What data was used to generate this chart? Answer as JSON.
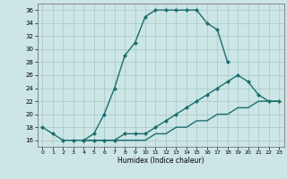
{
  "xlabel": "Humidex (Indice chaleur)",
  "bg_color": "#cce5e5",
  "grid_color": "#aacccc",
  "line_color": "#1a6e6e",
  "xlim": [
    -0.5,
    23.5
  ],
  "ylim": [
    15.0,
    37.0
  ],
  "yticks": [
    16,
    18,
    20,
    22,
    24,
    26,
    28,
    30,
    32,
    34,
    36
  ],
  "xticks": [
    0,
    1,
    2,
    3,
    4,
    5,
    6,
    7,
    8,
    9,
    10,
    11,
    12,
    13,
    14,
    15,
    16,
    17,
    18,
    19,
    20,
    21,
    22,
    23
  ],
  "line1_x": [
    0,
    1,
    2,
    3,
    4,
    5,
    6,
    7,
    8,
    9,
    10,
    11,
    12,
    13,
    14,
    15,
    16,
    17,
    18
  ],
  "line1_y": [
    18,
    17,
    16,
    16,
    16,
    17,
    20,
    24,
    29,
    31,
    35,
    36,
    36,
    36,
    36,
    36,
    34,
    33,
    28
  ],
  "line2_x": [
    4,
    5,
    6,
    7,
    8,
    9,
    10,
    11,
    12,
    13,
    14,
    15,
    16,
    17,
    18,
    19,
    20,
    21,
    22,
    23
  ],
  "line2_y": [
    16,
    16,
    16,
    16,
    17,
    17,
    17,
    18,
    19,
    20,
    21,
    22,
    23,
    24,
    25,
    26,
    25,
    23,
    22,
    22
  ],
  "line3_x": [
    4,
    5,
    6,
    7,
    8,
    9,
    10,
    11,
    12,
    13,
    14,
    15,
    16,
    17,
    18,
    19,
    20,
    21,
    22,
    23
  ],
  "line3_y": [
    16,
    16,
    16,
    16,
    16,
    16,
    16,
    17,
    17,
    18,
    18,
    19,
    19,
    20,
    20,
    21,
    21,
    22,
    22,
    22
  ]
}
